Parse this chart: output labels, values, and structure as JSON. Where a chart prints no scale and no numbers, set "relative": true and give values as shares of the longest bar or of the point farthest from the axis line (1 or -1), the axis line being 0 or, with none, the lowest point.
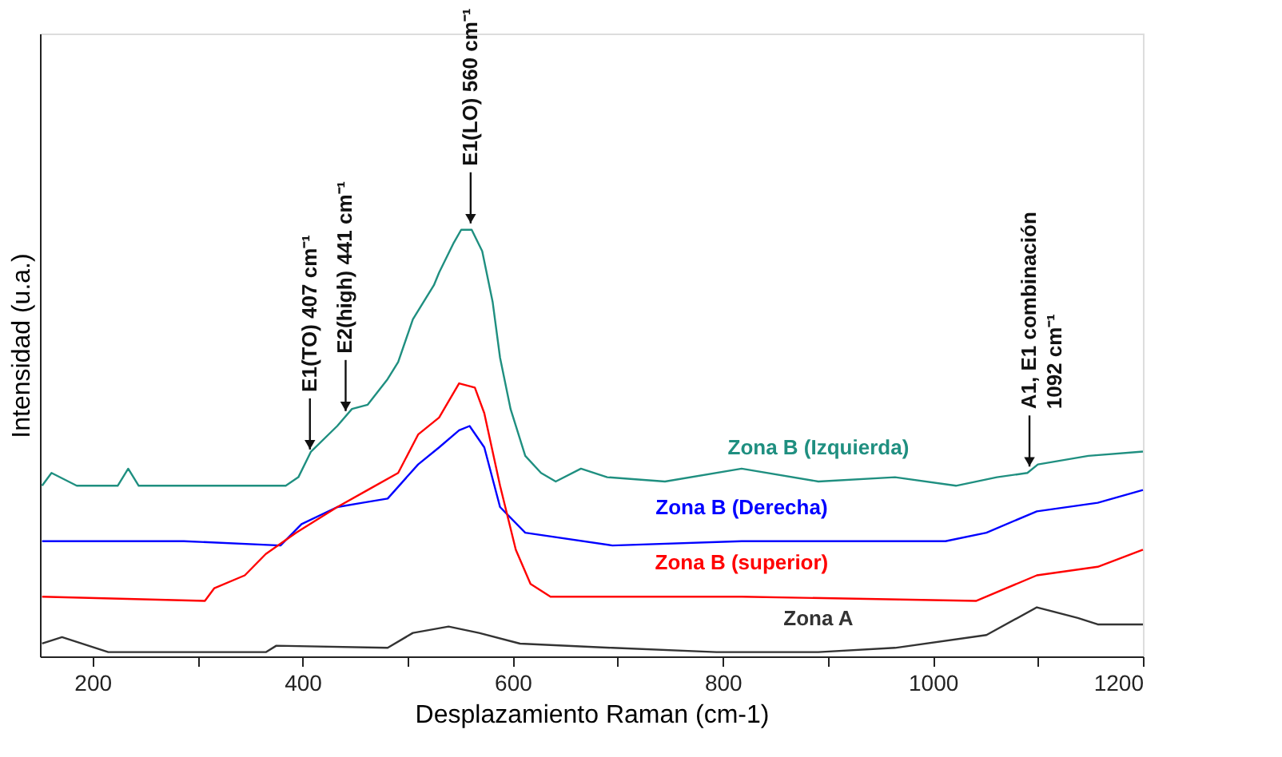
{
  "chart_data": {
    "type": "line",
    "relative": true,
    "xlabel": "Desplazamiento Raman (cm-1)",
    "ylabel": "Intensidad (u.a.)",
    "xlim": [
      150,
      1200
    ],
    "xticks": [
      200,
      {
        "value": 300,
        "label": null
      },
      400,
      {
        "value": 500,
        "label": null
      },
      600,
      {
        "value": 700,
        "label": null
      },
      800,
      {
        "value": 900,
        "label": null
      },
      1000,
      {
        "value": 1100,
        "label": null
      },
      1200
    ],
    "grid": false,
    "marker": "none",
    "line_style": "solid",
    "series": [
      {
        "name": "Zona B  (Izquierda)",
        "color": "#1f8f80",
        "x": [
          152,
          161,
          185,
          224,
          234,
          244,
          384,
          396,
          408,
          433,
          447,
          462,
          481,
          491,
          505,
          525,
          530,
          544,
          551,
          561,
          571,
          581,
          588,
          598,
          612,
          627,
          641,
          665,
          690,
          745,
          818,
          891,
          964,
          1022,
          1061,
          1090,
          1100,
          1148,
          1200
        ],
        "values": [
          0.4,
          0.43,
          0.4,
          0.4,
          0.44,
          0.4,
          0.4,
          0.42,
          0.48,
          0.54,
          0.58,
          0.59,
          0.65,
          0.69,
          0.79,
          0.87,
          0.9,
          0.97,
          1.0,
          1.0,
          0.95,
          0.83,
          0.7,
          0.58,
          0.47,
          0.43,
          0.41,
          0.44,
          0.42,
          0.41,
          0.44,
          0.41,
          0.42,
          0.4,
          0.42,
          0.43,
          0.45,
          0.47,
          0.48
        ]
      },
      {
        "name": "Zona B  (Derecha)",
        "color": "#0000ff",
        "x": [
          152,
          287,
          379,
          399,
          433,
          457,
          481,
          510,
          530,
          549,
          559,
          573,
          588,
          612,
          695,
          818,
          1012,
          1051,
          1099,
          1157,
          1200
        ],
        "values": [
          0.27,
          0.27,
          0.26,
          0.31,
          0.35,
          0.36,
          0.37,
          0.45,
          0.49,
          0.53,
          0.54,
          0.49,
          0.35,
          0.29,
          0.26,
          0.27,
          0.27,
          0.29,
          0.34,
          0.36,
          0.39
        ]
      },
      {
        "name": "Zona B  (superior)",
        "color": "#ff0000",
        "x": [
          152,
          307,
          316,
          345,
          365,
          394,
          433,
          462,
          491,
          510,
          530,
          549,
          564,
          573,
          588,
          603,
          617,
          636,
          695,
          818,
          1041,
          1099,
          1157,
          1200
        ],
        "values": [
          0.14,
          0.13,
          0.16,
          0.19,
          0.24,
          0.29,
          0.35,
          0.39,
          0.43,
          0.52,
          0.56,
          0.64,
          0.63,
          0.57,
          0.4,
          0.25,
          0.17,
          0.14,
          0.14,
          0.14,
          0.13,
          0.19,
          0.21,
          0.25
        ]
      },
      {
        "name": "Zona A",
        "color": "#333333",
        "x": [
          152,
          171,
          215,
          365,
          375,
          481,
          505,
          539,
          568,
          607,
          695,
          794,
          891,
          964,
          1051,
          1099,
          1138,
          1157,
          1200
        ],
        "values": [
          0.03,
          0.045,
          0.01,
          0.01,
          0.025,
          0.02,
          0.055,
          0.07,
          0.055,
          0.03,
          0.02,
          0.01,
          0.01,
          0.02,
          0.05,
          0.115,
          0.09,
          0.075,
          0.075
        ]
      }
    ],
    "annotations": [
      {
        "text": "E1(TO) 407  cm⁻¹",
        "x": 407,
        "y": 0.47
      },
      {
        "text": "E2(high) 441 cm⁻¹",
        "x": 441,
        "y": 0.56
      },
      {
        "text": "E1(LO) 560 cm⁻¹",
        "x": 560,
        "y": 1.0
      },
      {
        "text": "A1, E1 combinación\n1092 cm⁻¹",
        "x": 1092,
        "y": 0.43
      }
    ]
  }
}
